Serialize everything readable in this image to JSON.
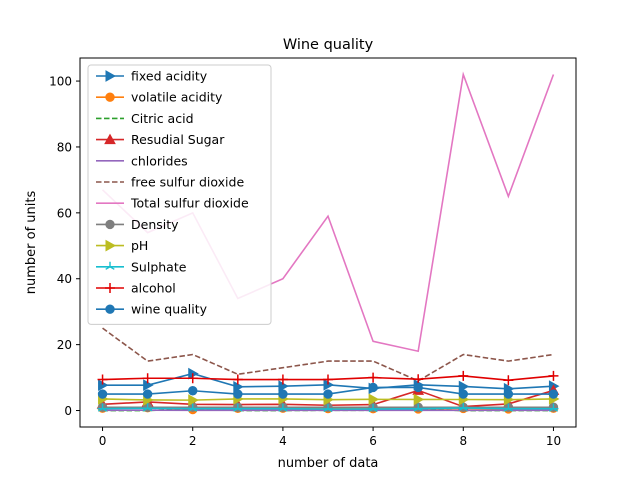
{
  "chart_data": {
    "type": "line",
    "title": "Wine quality",
    "xlabel": "number of data",
    "ylabel": "number of units",
    "xlim": [
      -0.5,
      10.5
    ],
    "ylim": [
      -5,
      107
    ],
    "xticks": [
      0,
      2,
      4,
      6,
      8,
      10
    ],
    "yticks": [
      0,
      20,
      40,
      60,
      80,
      100
    ],
    "x": [
      0,
      1,
      2,
      3,
      4,
      5,
      6,
      7,
      8,
      9,
      10
    ],
    "grid": false,
    "legend_position": "upper-left",
    "series": [
      {
        "name": "fixed acidity",
        "color": "#1f77b4",
        "dash": "solid",
        "marker": "triangle-right",
        "values": [
          7.7,
          7.7,
          11.2,
          7.2,
          7.4,
          7.8,
          6.7,
          7.8,
          7.3,
          6.6,
          7.4
        ]
      },
      {
        "name": "volatile acidity",
        "color": "#ff7f0e",
        "dash": "solid",
        "marker": "circle",
        "values": [
          0.7,
          0.88,
          0.28,
          0.66,
          0.7,
          0.6,
          0.58,
          0.5,
          0.65,
          0.5,
          0.7
        ]
      },
      {
        "name": "Citric acid",
        "color": "#2ca02c",
        "dash": "dashed",
        "marker": "none",
        "values": [
          0.0,
          0.0,
          0.56,
          0.0,
          0.0,
          0.06,
          0.08,
          0.36,
          0.0,
          0.0,
          0.0
        ]
      },
      {
        "name": "Resudial Sugar",
        "color": "#d62728",
        "dash": "solid",
        "marker": "triangle-up",
        "values": [
          1.9,
          2.6,
          1.9,
          1.8,
          1.9,
          1.6,
          1.8,
          6.1,
          1.2,
          2.0,
          6.1
        ]
      },
      {
        "name": "chlorides",
        "color": "#9467bd",
        "dash": "solid",
        "marker": "none",
        "values": [
          0.076,
          0.098,
          0.075,
          0.075,
          0.076,
          0.069,
          0.065,
          0.073,
          0.065,
          0.073,
          0.07
        ]
      },
      {
        "name": "free sulfur dioxide",
        "color": "#8c564b",
        "dash": "dashed",
        "marker": "none",
        "values": [
          25,
          15,
          17,
          11,
          13,
          15,
          15,
          9,
          17,
          15,
          17
        ]
      },
      {
        "name": "Total sulfur dioxide",
        "color": "#e377c2",
        "dash": "solid",
        "marker": "none",
        "values": [
          67,
          54,
          60,
          34,
          40,
          59,
          21,
          18,
          102,
          65,
          102
        ]
      },
      {
        "name": "Density",
        "color": "#7f7f7f",
        "dash": "solid",
        "marker": "circle",
        "values": [
          0.998,
          0.997,
          0.998,
          0.998,
          0.998,
          0.996,
          0.995,
          0.996,
          0.995,
          0.998,
          0.998
        ]
      },
      {
        "name": "pH",
        "color": "#bcbd22",
        "dash": "solid",
        "marker": "triangle-right",
        "values": [
          3.51,
          3.2,
          3.16,
          3.51,
          3.51,
          3.3,
          3.39,
          3.36,
          3.35,
          3.3,
          3.51
        ]
      },
      {
        "name": "Sulphate",
        "color": "#17becf",
        "dash": "solid",
        "marker": "tri-plus",
        "values": [
          0.56,
          0.68,
          0.58,
          0.56,
          0.56,
          0.46,
          0.47,
          0.57,
          0.8,
          0.56,
          0.56
        ]
      },
      {
        "name": "alcohol",
        "color": "#e00000",
        "dash": "solid",
        "marker": "plus",
        "values": [
          9.4,
          9.8,
          9.8,
          9.4,
          9.4,
          9.4,
          10.0,
          9.5,
          10.5,
          9.2,
          10.5
        ]
      },
      {
        "name": "wine quality",
        "color": "#1f77b4",
        "dash": "solid",
        "marker": "circle",
        "values": [
          5,
          5,
          6,
          5,
          5,
          5,
          7,
          7,
          5,
          5,
          5
        ]
      }
    ]
  }
}
